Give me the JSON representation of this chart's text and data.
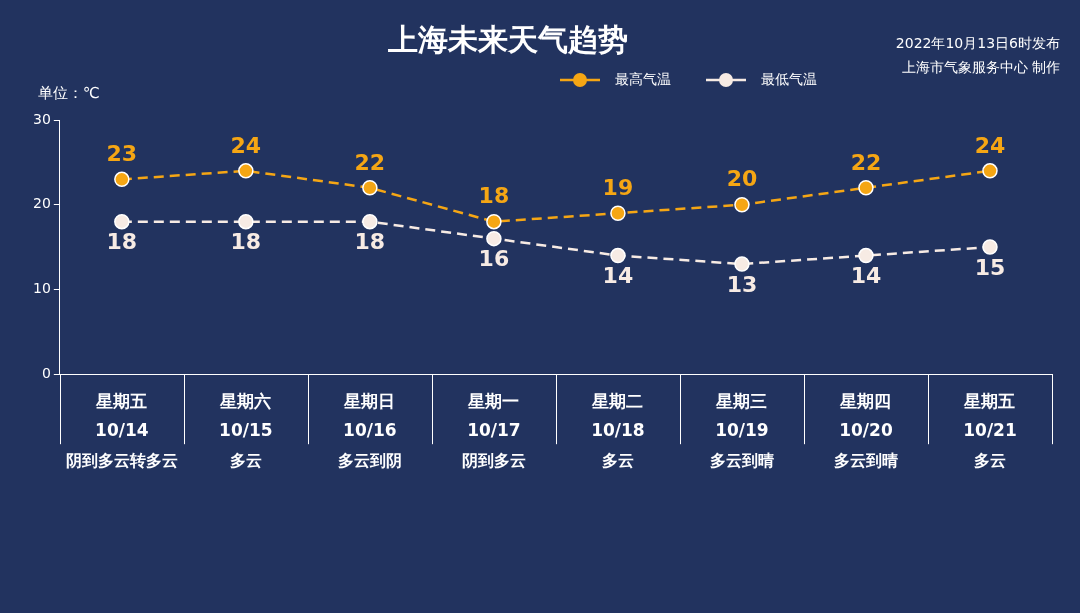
{
  "chart_data": {
    "type": "line",
    "title": "上海未来天气趋势",
    "ylabel": "单位：℃",
    "categories": [
      "星期五\n10/14",
      "星期六\n10/15",
      "星期日\n10/16",
      "星期一\n10/17",
      "星期二\n10/18",
      "星期三\n10/19",
      "星期四\n10/20",
      "星期五\n10/21"
    ],
    "series": [
      {
        "name": "最高气温",
        "color": "#f5a614",
        "values": [
          23,
          24,
          22,
          18,
          19,
          20,
          22,
          24
        ]
      },
      {
        "name": "最低气温",
        "color": "#f7ebe4",
        "values": [
          18,
          18,
          18,
          16,
          14,
          13,
          14,
          15
        ]
      }
    ],
    "ylim": [
      0,
      30
    ],
    "yticks": [
      0,
      10,
      20,
      30
    ],
    "grid": false,
    "legend": "top right",
    "marker": "circle",
    "line_style": "dashed",
    "data_labels": true,
    "annotations": [
      "2022年10月13日6时发布",
      "上海市气象服务中心 制作",
      "阴到多云转多云",
      "多云",
      "多云到阴",
      "阴到多云",
      "多云",
      "多云到晴",
      "多云到晴",
      "多云"
    ]
  }
}
